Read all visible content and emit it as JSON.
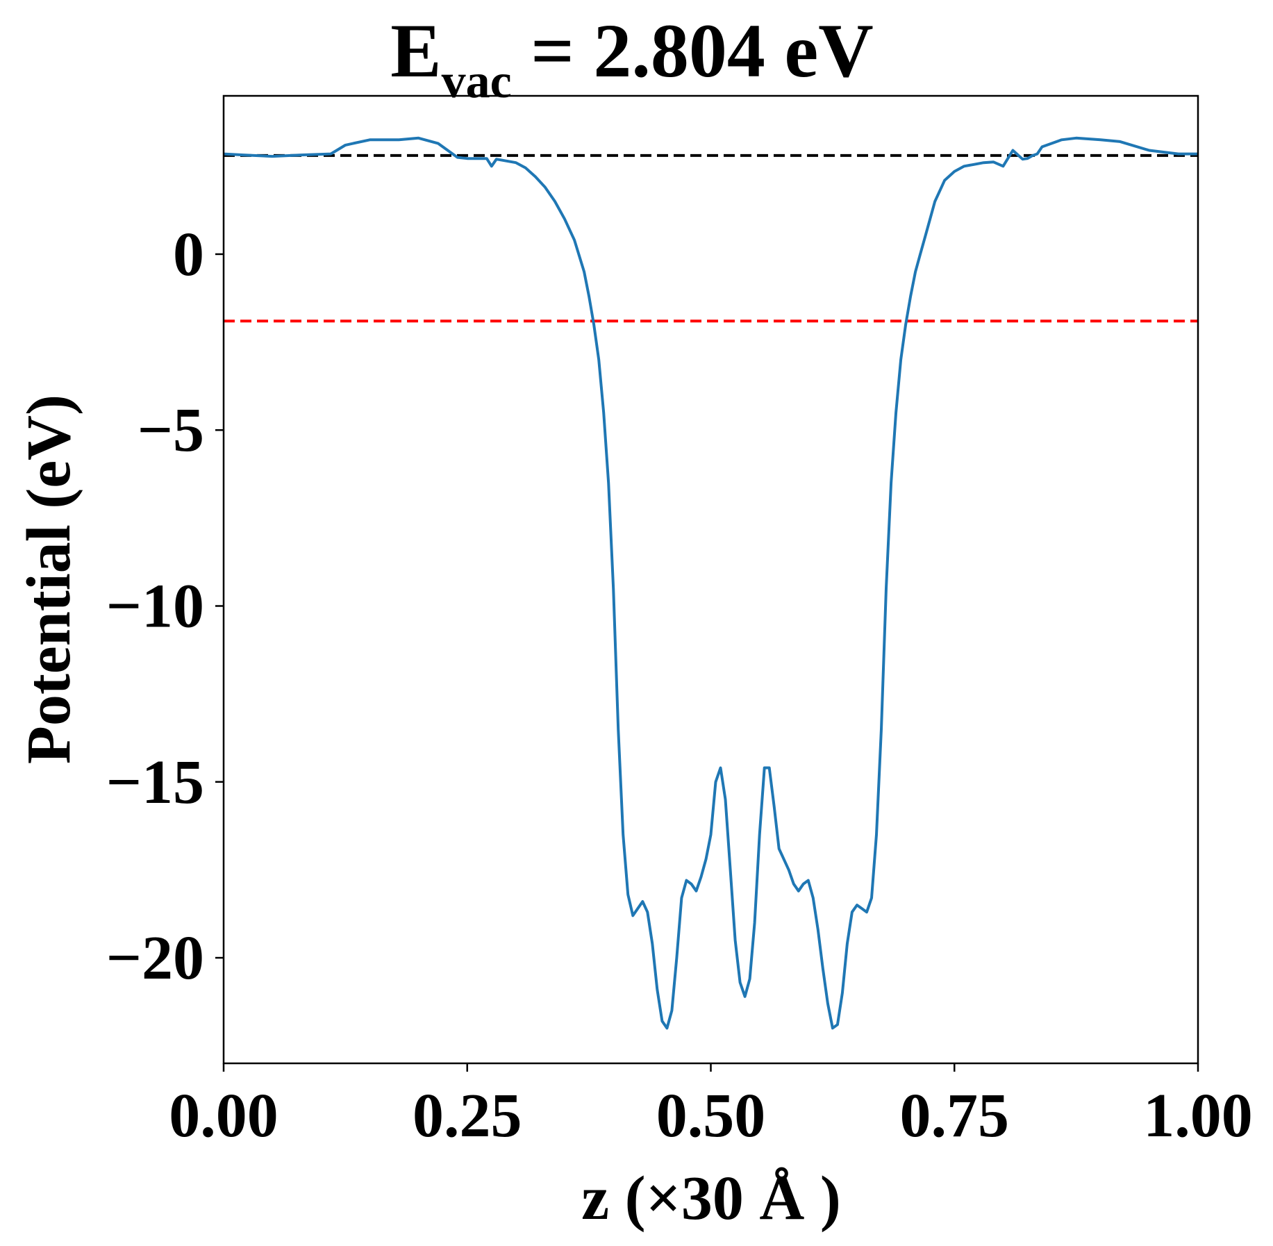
{
  "chart_data": {
    "type": "line",
    "title": {
      "main": "E",
      "subscript": "vac",
      "rest": " = 2.804 eV"
    },
    "xlabel": "z (×30 Å )",
    "ylabel": "Potential (eV)",
    "xlim": [
      0.0,
      1.0
    ],
    "ylim": [
      -23.0,
      4.5
    ],
    "x_ticks": [
      0.0,
      0.25,
      0.5,
      0.75,
      1.0
    ],
    "x_tick_labels": [
      "0.00",
      "0.25",
      "0.50",
      "0.75",
      "1.00"
    ],
    "y_ticks": [
      0,
      -5,
      -10,
      -15,
      -20
    ],
    "y_tick_labels": [
      "0",
      "−5",
      "−10",
      "−15",
      "−20"
    ],
    "grid": false,
    "reference_lines": [
      {
        "y": 2.804,
        "color": "#000000",
        "style": "dashed"
      },
      {
        "y": -1.9,
        "color": "#ff0000",
        "style": "dashed"
      }
    ],
    "series": [
      {
        "color": "#1f77b4",
        "x": [
          0.0,
          0.02,
          0.05,
          0.08,
          0.11,
          0.125,
          0.15,
          0.18,
          0.2,
          0.22,
          0.23,
          0.24,
          0.25,
          0.26,
          0.27,
          0.275,
          0.28,
          0.29,
          0.3,
          0.31,
          0.32,
          0.33,
          0.34,
          0.35,
          0.36,
          0.37,
          0.375,
          0.38,
          0.385,
          0.39,
          0.395,
          0.4,
          0.405,
          0.41,
          0.415,
          0.42,
          0.425,
          0.43,
          0.435,
          0.44,
          0.445,
          0.45,
          0.455,
          0.46,
          0.465,
          0.47,
          0.475,
          0.48,
          0.485,
          0.49,
          0.495,
          0.5,
          0.505,
          0.51,
          0.515,
          0.52,
          0.525,
          0.53,
          0.535,
          0.54,
          0.545,
          0.55,
          0.555,
          0.56,
          0.565,
          0.57,
          0.575,
          0.58,
          0.585,
          0.59,
          0.595,
          0.6,
          0.605,
          0.61,
          0.615,
          0.62,
          0.625,
          0.63,
          0.635,
          0.64,
          0.645,
          0.65,
          0.655,
          0.66,
          0.665,
          0.67,
          0.675,
          0.68,
          0.685,
          0.69,
          0.695,
          0.7,
          0.705,
          0.71,
          0.715,
          0.72,
          0.725,
          0.73,
          0.735,
          0.74,
          0.75,
          0.76,
          0.77,
          0.78,
          0.79,
          0.8,
          0.81,
          0.82,
          0.825,
          0.83,
          0.835,
          0.84,
          0.86,
          0.875,
          0.9,
          0.92,
          0.95,
          0.98,
          1.0
        ],
        "y": [
          2.85,
          2.82,
          2.78,
          2.82,
          2.85,
          3.1,
          3.25,
          3.25,
          3.3,
          3.15,
          2.95,
          2.75,
          2.72,
          2.72,
          2.72,
          2.5,
          2.7,
          2.65,
          2.6,
          2.45,
          2.2,
          1.9,
          1.5,
          1.0,
          0.4,
          -0.5,
          -1.2,
          -2.0,
          -3.0,
          -4.5,
          -6.5,
          -9.5,
          -13.5,
          -16.5,
          -18.2,
          -18.8,
          -18.6,
          -18.4,
          -18.7,
          -19.6,
          -20.9,
          -21.8,
          -22.0,
          -21.5,
          -20.0,
          -18.3,
          -17.8,
          -17.9,
          -18.1,
          -17.7,
          -17.2,
          -16.5,
          -15.0,
          -14.6,
          -15.5,
          -17.5,
          -19.5,
          -20.7,
          -21.1,
          -20.6,
          -19.0,
          -16.5,
          -14.6,
          -14.6,
          -15.7,
          -16.9,
          -17.2,
          -17.5,
          -17.9,
          -18.1,
          -17.9,
          -17.8,
          -18.3,
          -19.2,
          -20.3,
          -21.3,
          -22.0,
          -21.9,
          -21.0,
          -19.6,
          -18.7,
          -18.5,
          -18.6,
          -18.7,
          -18.3,
          -16.5,
          -13.5,
          -9.5,
          -6.5,
          -4.5,
          -3.0,
          -2.0,
          -1.2,
          -0.5,
          0.0,
          0.5,
          1.0,
          1.5,
          1.8,
          2.1,
          2.35,
          2.5,
          2.55,
          2.6,
          2.62,
          2.5,
          2.95,
          2.7,
          2.72,
          2.8,
          2.85,
          3.05,
          3.25,
          3.3,
          3.25,
          3.2,
          2.95,
          2.85,
          2.85
        ]
      }
    ]
  }
}
